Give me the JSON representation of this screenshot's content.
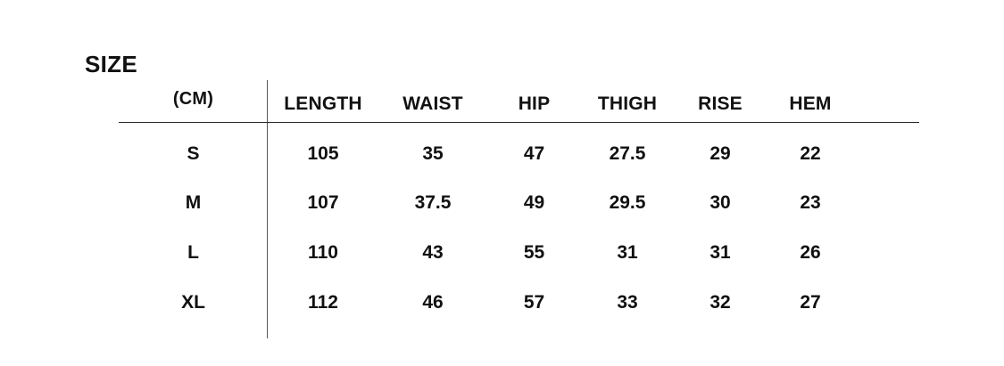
{
  "title": "SIZE",
  "chart_data": {
    "type": "table",
    "title": "SIZE",
    "unit_label": "(CM)",
    "columns": [
      "LENGTH",
      "WAIST",
      "HIP",
      "THIGH",
      "RISE",
      "HEM"
    ],
    "rows": [
      {
        "size": "S",
        "values": [
          105,
          35,
          47,
          27.5,
          29,
          22
        ]
      },
      {
        "size": "M",
        "values": [
          107,
          37.5,
          49,
          29.5,
          30,
          23
        ]
      },
      {
        "size": "L",
        "values": [
          110,
          43,
          55,
          31,
          31,
          26
        ]
      },
      {
        "size": "XL",
        "values": [
          112,
          46,
          57,
          33,
          32,
          27
        ]
      }
    ]
  },
  "colors": {
    "text": "#111111",
    "background": "#ffffff",
    "vertical_rule": "#58585a",
    "horizontal_rule": "#2b2b2b"
  }
}
